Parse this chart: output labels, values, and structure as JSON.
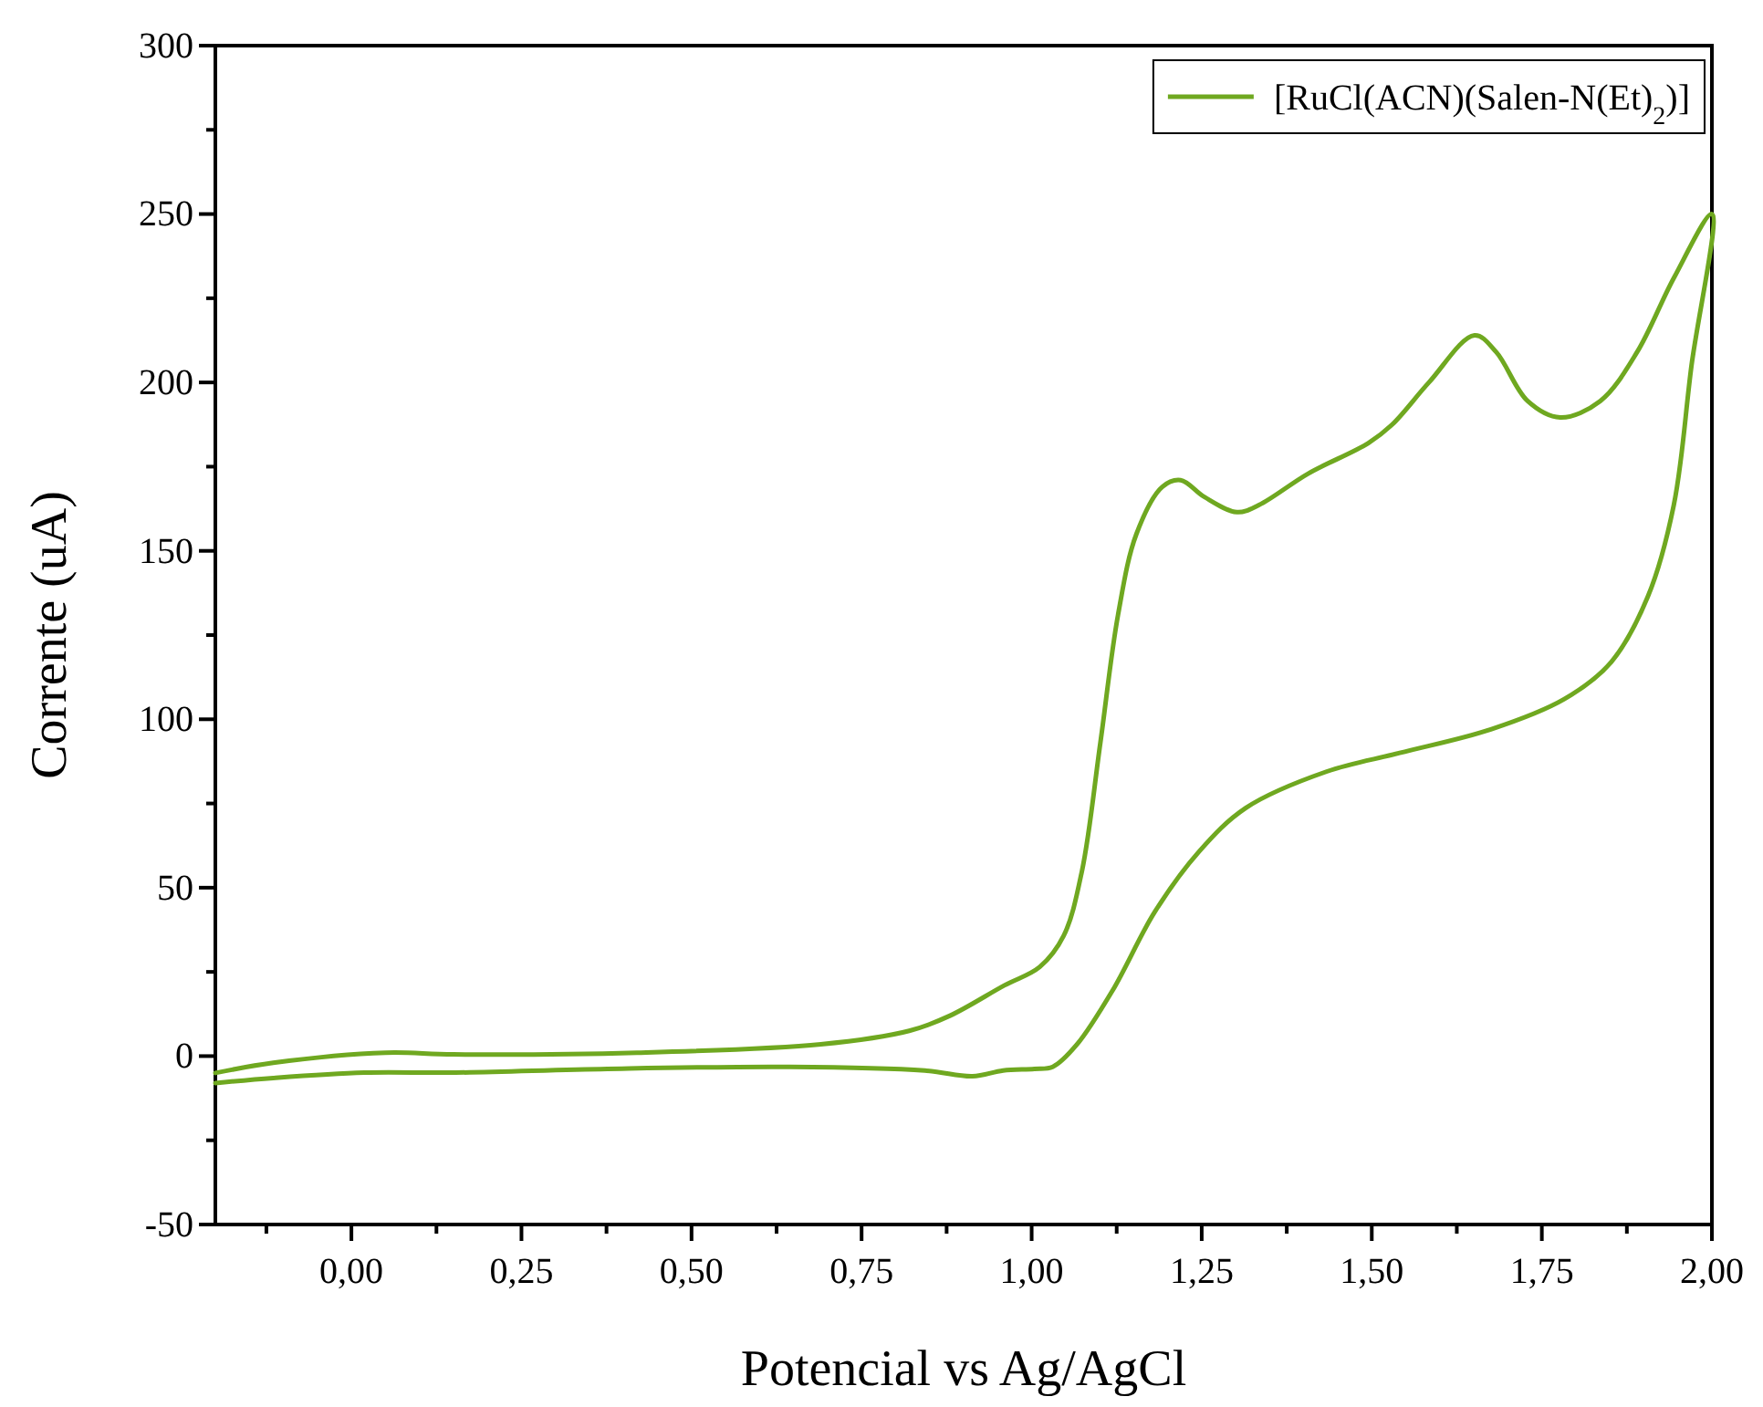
{
  "chart_data": {
    "type": "line",
    "xlabel": "Potencial vs Ag/AgCl",
    "ylabel": "Corrente (uA)",
    "xlim": [
      -0.2,
      2.0
    ],
    "xticks": [
      {
        "value": -0.125,
        "label": null
      },
      {
        "value": 0,
        "label": "0,00"
      },
      {
        "value": 0.125,
        "label": null
      },
      {
        "value": 0.25,
        "label": "0,25"
      },
      {
        "value": 0.375,
        "label": null
      },
      {
        "value": 0.5,
        "label": "0,50"
      },
      {
        "value": 0.625,
        "label": null
      },
      {
        "value": 0.75,
        "label": "0,75"
      },
      {
        "value": 0.875,
        "label": null
      },
      {
        "value": 1,
        "label": "1,00"
      },
      {
        "value": 1.125,
        "label": null
      },
      {
        "value": 1.25,
        "label": "1,25"
      },
      {
        "value": 1.375,
        "label": null
      },
      {
        "value": 1.5,
        "label": "1,50"
      },
      {
        "value": 1.625,
        "label": null
      },
      {
        "value": 1.75,
        "label": "1,75"
      },
      {
        "value": 1.875,
        "label": null
      },
      {
        "value": 2,
        "label": "2,00"
      }
    ],
    "ylim": [
      -50,
      300
    ],
    "yticks": [
      -50,
      {
        "value": -25,
        "label": null
      },
      0,
      {
        "value": 25,
        "label": null
      },
      50,
      {
        "value": 75,
        "label": null
      },
      100,
      {
        "value": 125,
        "label": null
      },
      150,
      {
        "value": 175,
        "label": null
      },
      200,
      {
        "value": 225,
        "label": null
      },
      250,
      {
        "value": 275,
        "label": null
      },
      300
    ],
    "grid": false,
    "legend": "top right",
    "line_style": "solid",
    "marker": "none",
    "series": [
      {
        "name": "[RuCl(ACN)(Salen-N(Et)$_{2}$)]",
        "color": "#6fa820",
        "x": [
          -0.2,
          -0.115,
          0.05,
          0.15,
          0.42,
          0.69,
          0.82,
          0.88,
          0.96,
          1.012,
          1.047,
          1.074,
          1.101,
          1.127,
          1.154,
          1.192,
          1.219,
          1.254,
          1.302,
          1.334,
          1.407,
          1.495,
          1.53,
          1.584,
          1.651,
          1.683,
          1.729,
          1.777,
          1.836,
          1.89,
          1.944,
          2.0,
          1.97,
          1.944,
          1.906,
          1.852,
          1.783,
          1.675,
          1.541,
          1.434,
          1.315,
          1.246,
          1.181,
          1.119,
          1.066,
          1.031,
          1.004,
          0.958,
          0.913,
          0.843,
          0.644,
          0.376,
          0.153,
          0.019,
          -0.115,
          -0.2
        ],
        "values": [
          -5,
          -2,
          1,
          0.5,
          1,
          3.5,
          7.5,
          12,
          21,
          26.5,
          35.7,
          55,
          93,
          131,
          155,
          169,
          171,
          166,
          161.5,
          163.6,
          173,
          182,
          187.5,
          200,
          214,
          209,
          194.5,
          189.6,
          194.5,
          209,
          231,
          250,
          205,
          163.6,
          136.5,
          117,
          106,
          97,
          90,
          84.5,
          73.7,
          60.7,
          42.8,
          19.5,
          3.3,
          -3.2,
          -3.8,
          -4.3,
          -6,
          -4.3,
          -3.2,
          -3.8,
          -4.9,
          -4.9,
          -6.5,
          -8
        ]
      }
    ]
  }
}
